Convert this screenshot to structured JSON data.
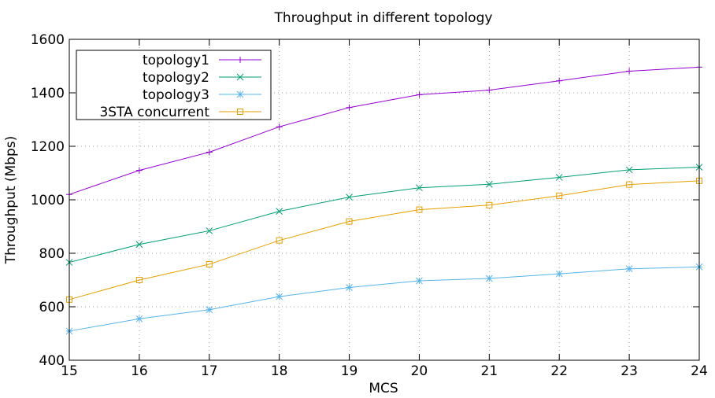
{
  "chart_data": {
    "type": "line",
    "title": "Throughput in different topology",
    "xlabel": "MCS",
    "ylabel": "Throughput (Mbps)",
    "x": [
      15,
      16,
      17,
      18,
      19,
      20,
      21,
      22,
      23,
      24
    ],
    "xlim": [
      15,
      24
    ],
    "ylim": [
      400,
      1600
    ],
    "yticks": [
      400,
      600,
      800,
      1000,
      1200,
      1400,
      1600
    ],
    "xticks": [
      15,
      16,
      17,
      18,
      19,
      20,
      21,
      22,
      23,
      24
    ],
    "grid": true,
    "legend_position": "top-left",
    "series": [
      {
        "name": "topology1",
        "color": "#9400d3",
        "marker": "plus",
        "values": [
          1020,
          1110,
          1178,
          1273,
          1345,
          1393,
          1410,
          1445,
          1481,
          1496
        ]
      },
      {
        "name": "topology2",
        "color": "#009e73",
        "marker": "cross",
        "values": [
          766,
          833,
          884,
          957,
          1010,
          1045,
          1058,
          1084,
          1112,
          1122
        ]
      },
      {
        "name": "topology3",
        "color": "#56b4e9",
        "marker": "star",
        "values": [
          509,
          555,
          589,
          638,
          672,
          697,
          706,
          723,
          742,
          749
        ]
      },
      {
        "name": "3STA concurrent",
        "color": "#e69f00",
        "marker": "square",
        "values": [
          627,
          700,
          759,
          848,
          919,
          963,
          980,
          1015,
          1057,
          1071
        ]
      }
    ]
  }
}
